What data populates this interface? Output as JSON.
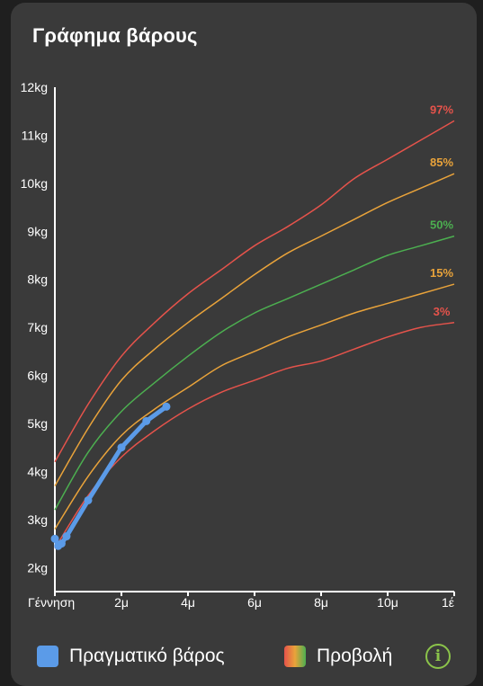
{
  "card": {
    "title": "Γράφημα βάρους"
  },
  "chart_data": {
    "type": "line",
    "title": "Γράφημα βάρους",
    "xlabel": "",
    "ylabel": "",
    "xlim": [
      0,
      12
    ],
    "ylim": [
      1.5,
      12
    ],
    "x_ticks": [
      {
        "value": 0,
        "label": "Γέννηση"
      },
      {
        "value": 2,
        "label": "2μ"
      },
      {
        "value": 4,
        "label": "4μ"
      },
      {
        "value": 6,
        "label": "6μ"
      },
      {
        "value": 8,
        "label": "8μ"
      },
      {
        "value": 10,
        "label": "10μ"
      },
      {
        "value": 12,
        "label": "1έ"
      }
    ],
    "y_ticks": [
      {
        "value": 2,
        "label": "2kg"
      },
      {
        "value": 3,
        "label": "3kg"
      },
      {
        "value": 4,
        "label": "4kg"
      },
      {
        "value": 5,
        "label": "5kg"
      },
      {
        "value": 6,
        "label": "6kg"
      },
      {
        "value": 7,
        "label": "7kg"
      },
      {
        "value": 8,
        "label": "8kg"
      },
      {
        "value": 9,
        "label": "9kg"
      },
      {
        "value": 10,
        "label": "10kg"
      },
      {
        "value": 11,
        "label": "11kg"
      },
      {
        "value": 12,
        "label": "12kg"
      }
    ],
    "grid": false,
    "percentiles": [
      {
        "name": "97%",
        "color": "#e5534b",
        "x": [
          0,
          1,
          2,
          3,
          4,
          5,
          6,
          7,
          8,
          9,
          10,
          11,
          12
        ],
        "y": [
          4.2,
          5.4,
          6.4,
          7.1,
          7.7,
          8.2,
          8.7,
          9.1,
          9.55,
          10.1,
          10.5,
          10.9,
          11.3
        ]
      },
      {
        "name": "85%",
        "color": "#e9a33a",
        "x": [
          0,
          1,
          2,
          3,
          4,
          5,
          6,
          7,
          8,
          9,
          10,
          11,
          12
        ],
        "y": [
          3.7,
          4.9,
          5.9,
          6.55,
          7.1,
          7.6,
          8.1,
          8.55,
          8.9,
          9.25,
          9.6,
          9.9,
          10.2
        ]
      },
      {
        "name": "50%",
        "color": "#4caf50",
        "x": [
          0,
          1,
          2,
          3,
          4,
          5,
          6,
          7,
          8,
          9,
          10,
          11,
          12
        ],
        "y": [
          3.2,
          4.4,
          5.25,
          5.85,
          6.4,
          6.9,
          7.3,
          7.6,
          7.9,
          8.2,
          8.5,
          8.7,
          8.9
        ]
      },
      {
        "name": "15%",
        "color": "#e9a33a",
        "x": [
          0,
          1,
          2,
          3,
          4,
          5,
          6,
          7,
          8,
          9,
          10,
          11,
          12
        ],
        "y": [
          2.8,
          3.9,
          4.75,
          5.3,
          5.75,
          6.2,
          6.5,
          6.8,
          7.05,
          7.3,
          7.5,
          7.7,
          7.9
        ]
      },
      {
        "name": "3%",
        "color": "#e5534b",
        "x": [
          0,
          1,
          2,
          3,
          4,
          5,
          6,
          7,
          8,
          9,
          10,
          11,
          12
        ],
        "y": [
          2.4,
          3.5,
          4.3,
          4.85,
          5.3,
          5.65,
          5.9,
          6.15,
          6.3,
          6.55,
          6.8,
          7.0,
          7.1
        ]
      }
    ],
    "series": [
      {
        "name": "Πραγματικό βάρος",
        "color": "#5b9be8",
        "x": [
          0,
          0.1,
          0.2,
          0.35,
          1.0,
          2.0,
          2.75,
          3.35
        ],
        "y": [
          2.6,
          2.45,
          2.5,
          2.65,
          3.4,
          4.5,
          5.05,
          5.35
        ]
      }
    ]
  },
  "legend": {
    "actual_label": "Πραγματικό βάρος",
    "projection_label": "Προβολή",
    "actual_color": "#5b9be8",
    "projection_colors": [
      "#e5534b",
      "#e9a33a",
      "#4caf50"
    ]
  },
  "info": {
    "icon": "info-icon",
    "glyph": "i"
  }
}
